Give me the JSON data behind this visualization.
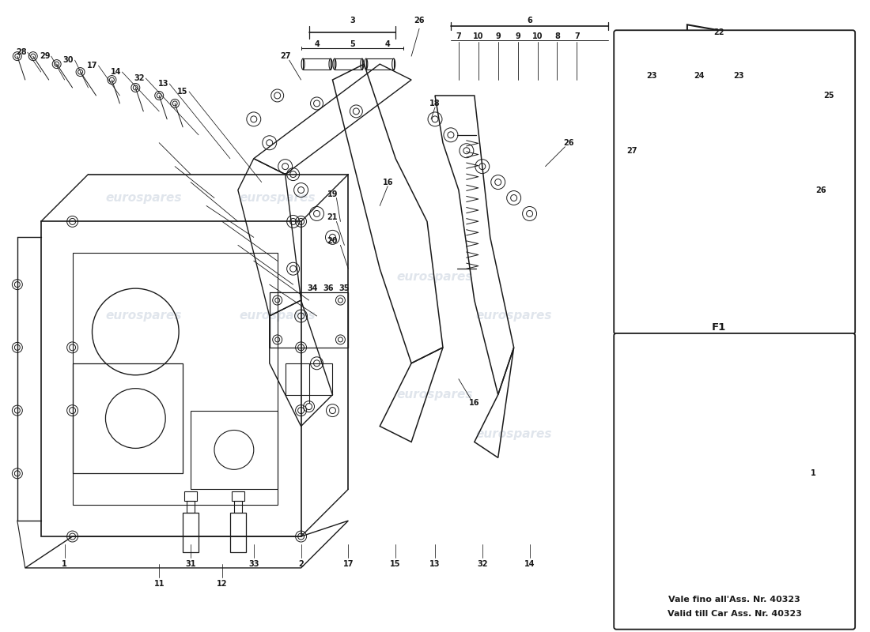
{
  "bg_color": "#ffffff",
  "line_color": "#1a1a1a",
  "watermark_color": "#ccd5e0",
  "box_note_line1": "Vale fino all'Ass. Nr. 40323",
  "box_note_line2": "Valid till Car Ass. Nr. 40323",
  "label_fontsize": 7.5,
  "small_fontsize": 7,
  "f1_label": "F1",
  "arrow_pointing": "left"
}
